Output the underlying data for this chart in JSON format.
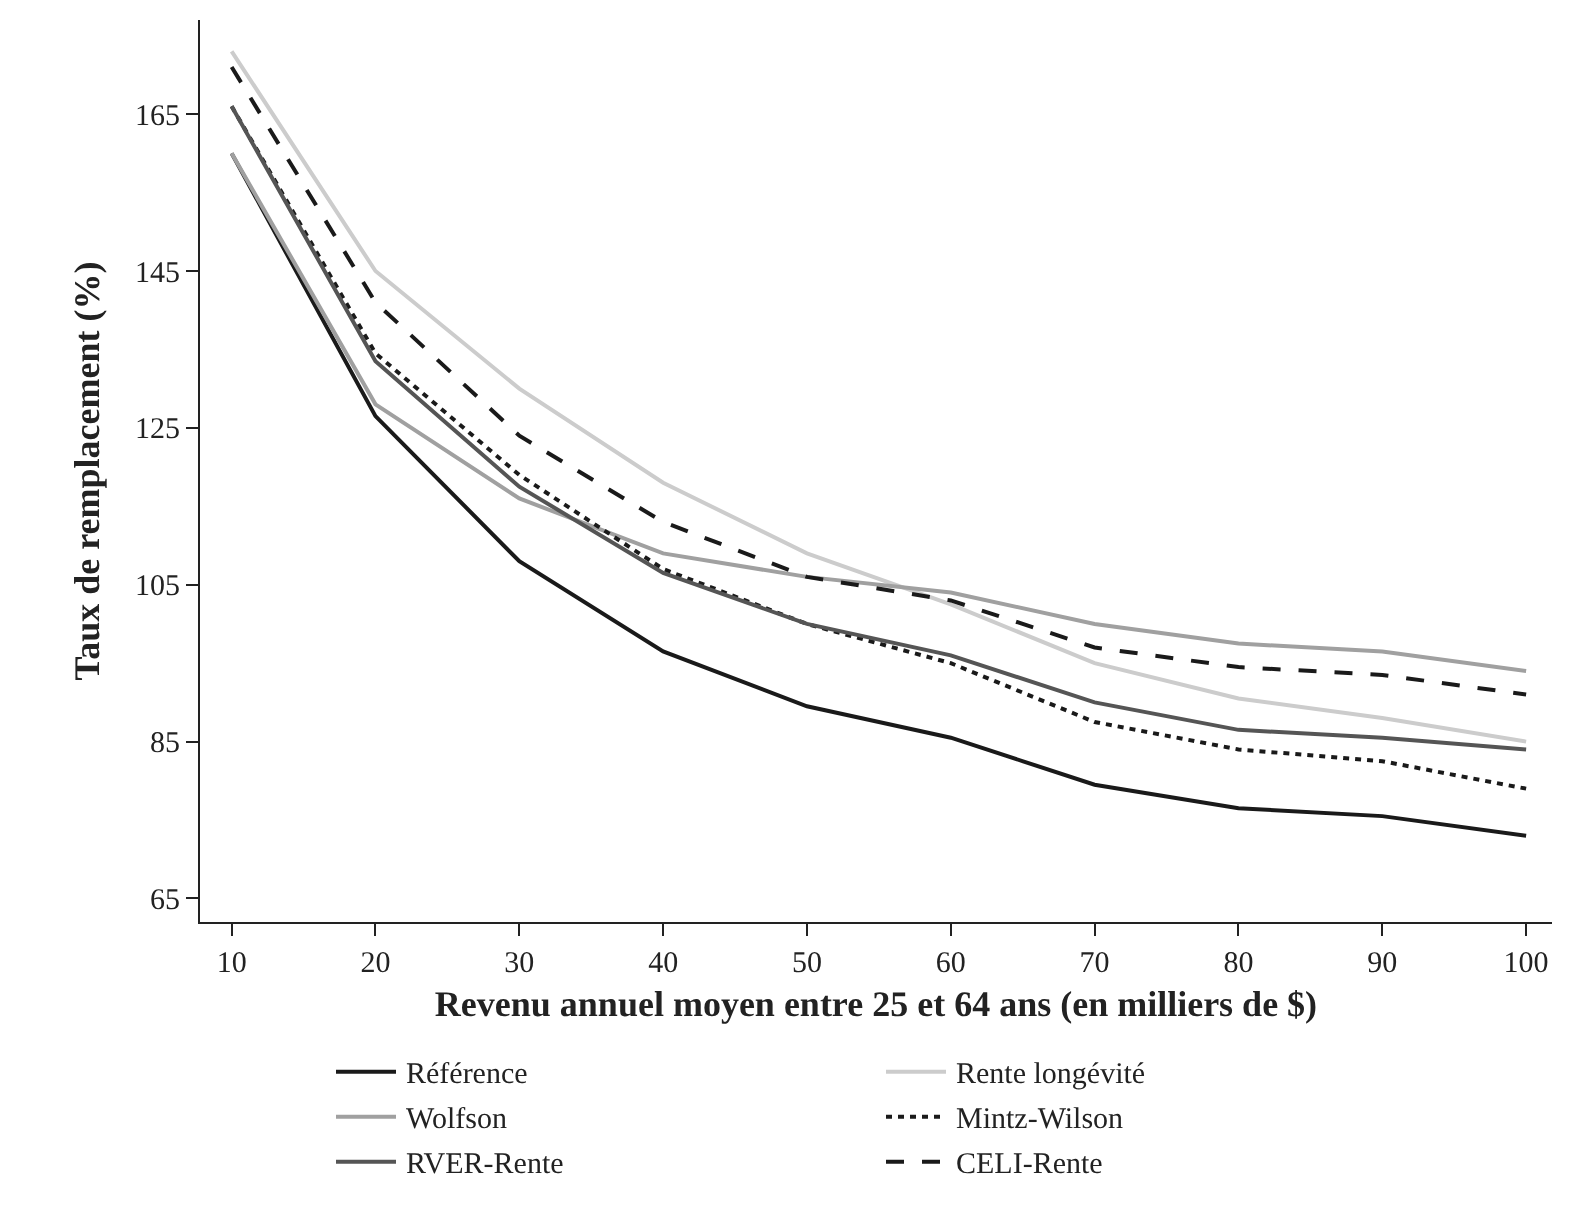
{
  "chart_data": {
    "type": "line",
    "xlabel": "Revenu annuel moyen entre 25 et 64 ans (en milliers de $)",
    "ylabel": "Taux de remplacement (%)",
    "x": [
      10,
      20,
      30,
      40,
      50,
      60,
      70,
      80,
      90,
      100
    ],
    "xlim": [
      7.8,
      101.8
    ],
    "xticks": [
      10,
      20,
      30,
      40,
      50,
      60,
      70,
      80,
      90,
      100
    ],
    "ylim": [
      62,
      177
    ],
    "yticks": [
      65,
      85,
      105,
      125,
      145,
      165
    ],
    "grid": false,
    "legend": "bottom",
    "marker": "none",
    "series": [
      {
        "name": "Référence",
        "color": "#1a1a1a",
        "line_style": "solid",
        "values": [
          160,
          126.5,
          108,
          96.5,
          89.5,
          85.5,
          79.5,
          76.5,
          75.5,
          73
        ]
      },
      {
        "name": "Rente longévité",
        "color": "#cccccc",
        "line_style": "solid",
        "values": [
          173,
          145,
          130,
          118,
          109,
          102.5,
          95,
          90.5,
          88,
          85
        ]
      },
      {
        "name": "Wolfson",
        "color": "#a0a0a0",
        "line_style": "solid",
        "values": [
          160,
          128,
          116,
          109,
          106,
          104,
          100,
          97.5,
          96.5,
          94
        ]
      },
      {
        "name": "Mintz-Wilson",
        "color": "#1a1a1a",
        "line_style": "dotted",
        "values": [
          166,
          134.5,
          119,
          107,
          100,
          95,
          87.5,
          84,
          82.5,
          79
        ]
      },
      {
        "name": "RVER-Rente",
        "color": "#555555",
        "line_style": "solid",
        "values": [
          166,
          133.5,
          117.5,
          106.5,
          100,
          96,
          90,
          86.5,
          85.5,
          84
        ]
      },
      {
        "name": "CELI-Rente",
        "color": "#1a1a1a",
        "line_style": "dashed",
        "values": [
          171,
          141,
          124,
          113,
          106,
          103,
          97,
          94.5,
          93.5,
          91
        ]
      }
    ]
  }
}
